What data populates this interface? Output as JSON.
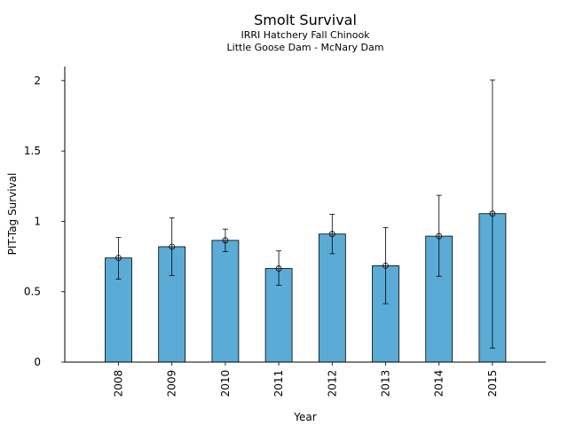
{
  "chart_data": {
    "type": "bar",
    "title": "Smolt Survival",
    "subtitle_lines": [
      "IRRI Hatchery Fall Chinook",
      "Little Goose Dam - McNary Dam"
    ],
    "xlabel": "Year",
    "ylabel": "PIT-Tag Survival",
    "categories": [
      "2008",
      "2009",
      "2010",
      "2011",
      "2012",
      "2013",
      "2014",
      "2015"
    ],
    "values": [
      0.74,
      0.82,
      0.865,
      0.665,
      0.91,
      0.685,
      0.895,
      1.055
    ],
    "error_low": [
      0.59,
      0.615,
      0.785,
      0.545,
      0.77,
      0.415,
      0.61,
      0.1
    ],
    "error_high": [
      0.885,
      1.025,
      0.945,
      0.79,
      1.05,
      0.955,
      1.185,
      2.005
    ],
    "yticks": [
      "0",
      "0.5",
      "1",
      "1.5",
      "2"
    ],
    "ytick_values": [
      0,
      0.5,
      1,
      1.5,
      2
    ],
    "ylim": [
      0,
      2.1
    ],
    "grid": false,
    "legend": "none",
    "bar_color": "#5aabd6",
    "edge_color": "#000000"
  }
}
